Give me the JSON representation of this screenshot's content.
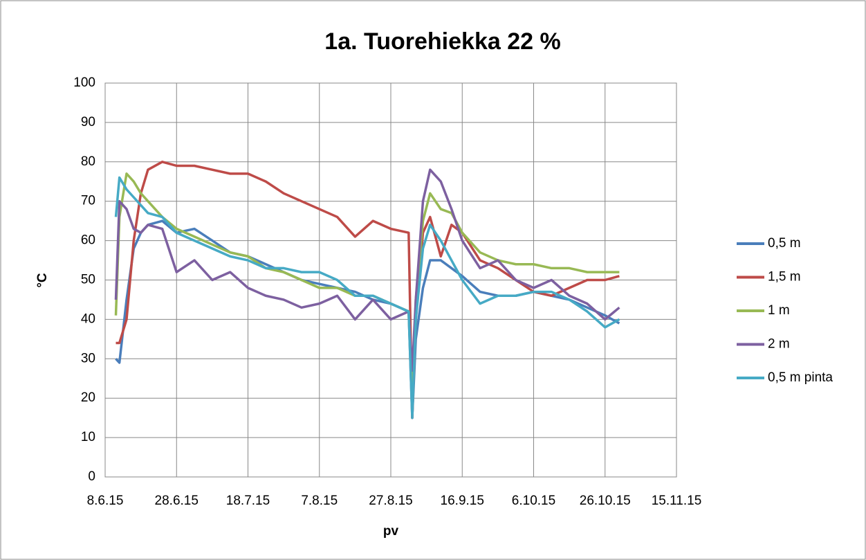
{
  "chart_data": {
    "type": "line",
    "title": "1a. Tuorehiekka 22 %",
    "xlabel": "pv",
    "ylabel": "°C",
    "x": [
      "2015-06-11",
      "2015-06-12",
      "2015-06-14",
      "2015-06-16",
      "2015-06-18",
      "2015-06-20",
      "2015-06-24",
      "2015-06-28",
      "2015-07-03",
      "2015-07-08",
      "2015-07-13",
      "2015-07-18",
      "2015-07-23",
      "2015-07-28",
      "2015-08-02",
      "2015-08-07",
      "2015-08-12",
      "2015-08-17",
      "2015-08-22",
      "2015-08-27",
      "2015-09-01",
      "2015-09-02",
      "2015-09-03",
      "2015-09-05",
      "2015-09-07",
      "2015-09-10",
      "2015-09-13",
      "2015-09-16",
      "2015-09-21",
      "2015-09-26",
      "2015-10-01",
      "2015-10-06",
      "2015-10-11",
      "2015-10-16",
      "2015-10-21",
      "2015-10-26",
      "2015-10-30"
    ],
    "series": [
      {
        "name": "0,5 m",
        "color": "#4a7ebb",
        "values": [
          30,
          29,
          45,
          58,
          62,
          64,
          65,
          62,
          63,
          60,
          57,
          56,
          54,
          52,
          50,
          49,
          48,
          47,
          45,
          44,
          42,
          15,
          35,
          48,
          55,
          55,
          53,
          51,
          47,
          46,
          46,
          47,
          46,
          45,
          43,
          41,
          39
        ]
      },
      {
        "name": "1,5 m",
        "color": "#be4b48",
        "values": [
          34,
          34,
          40,
          60,
          72,
          78,
          80,
          79,
          79,
          78,
          77,
          77,
          75,
          72,
          70,
          68,
          66,
          61,
          65,
          63,
          62,
          15,
          40,
          62,
          66,
          56,
          64,
          62,
          55,
          53,
          50,
          47,
          46,
          48,
          50,
          50,
          51
        ]
      },
      {
        "name": "1 m",
        "color": "#98b954",
        "values": [
          41,
          66,
          77,
          75,
          72,
          70,
          66,
          63,
          61,
          59,
          57,
          56,
          53,
          52,
          50,
          48,
          48,
          46,
          46,
          44,
          42,
          20,
          45,
          65,
          72,
          68,
          67,
          62,
          57,
          55,
          54,
          54,
          53,
          53,
          52,
          52,
          52
        ]
      },
      {
        "name": "2 m",
        "color": "#7d60a0",
        "values": [
          45,
          70,
          68,
          63,
          62,
          64,
          63,
          52,
          55,
          50,
          52,
          48,
          46,
          45,
          43,
          44,
          46,
          40,
          45,
          40,
          42,
          27,
          45,
          70,
          78,
          75,
          68,
          60,
          53,
          55,
          50,
          48,
          50,
          46,
          44,
          40,
          43
        ]
      },
      {
        "name": "0,5 m pinta",
        "color": "#46aac5",
        "values": [
          66,
          76,
          73,
          71,
          69,
          67,
          66,
          62,
          60,
          58,
          56,
          55,
          53,
          53,
          52,
          52,
          50,
          46,
          46,
          44,
          42,
          15,
          40,
          58,
          64,
          60,
          55,
          50,
          44,
          46,
          46,
          47,
          47,
          45,
          42,
          38,
          40
        ]
      }
    ],
    "xlim": [
      "2015-06-08",
      "2015-11-15"
    ],
    "xticks": [
      {
        "value": "2015-06-08",
        "label": "8.6.15"
      },
      {
        "value": "2015-06-28",
        "label": "28.6.15"
      },
      {
        "value": "2015-07-18",
        "label": "18.7.15"
      },
      {
        "value": "2015-08-07",
        "label": "7.8.15"
      },
      {
        "value": "2015-08-27",
        "label": "27.8.15"
      },
      {
        "value": "2015-09-16",
        "label": "16.9.15"
      },
      {
        "value": "2015-10-06",
        "label": "6.10.15"
      },
      {
        "value": "2015-10-26",
        "label": "26.10.15"
      },
      {
        "value": "2015-11-15",
        "label": "15.11.15"
      }
    ],
    "ylim": [
      0,
      100
    ],
    "yticks": [
      0,
      10,
      20,
      30,
      40,
      50,
      60,
      70,
      80,
      90,
      100
    ],
    "grid": true,
    "legend": "right"
  }
}
